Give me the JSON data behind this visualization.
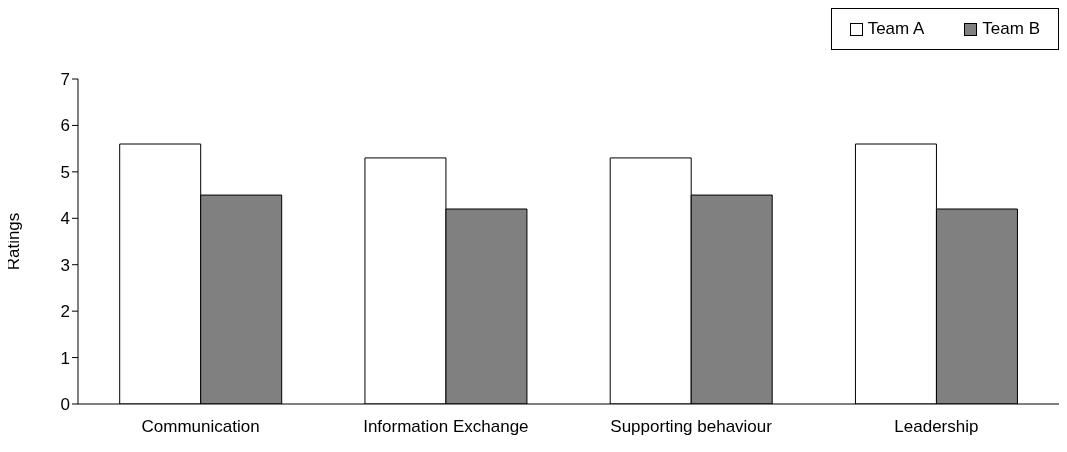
{
  "chart_data": {
    "type": "bar",
    "ylabel": "Ratings",
    "categories": [
      "Communication",
      "Information Exchange",
      "Supporting behaviour",
      "Leadership"
    ],
    "series": [
      {
        "name": "Team A",
        "color": "#ffffff",
        "values": [
          5.6,
          5.3,
          5.3,
          5.6
        ]
      },
      {
        "name": "Team B",
        "color": "#808080",
        "values": [
          4.5,
          4.2,
          4.5,
          4.2
        ]
      }
    ],
    "ylim": [
      0,
      7
    ],
    "yticks": [
      0,
      1,
      2,
      3,
      4,
      5,
      6,
      7
    ],
    "grid": false,
    "legend": "top right"
  }
}
